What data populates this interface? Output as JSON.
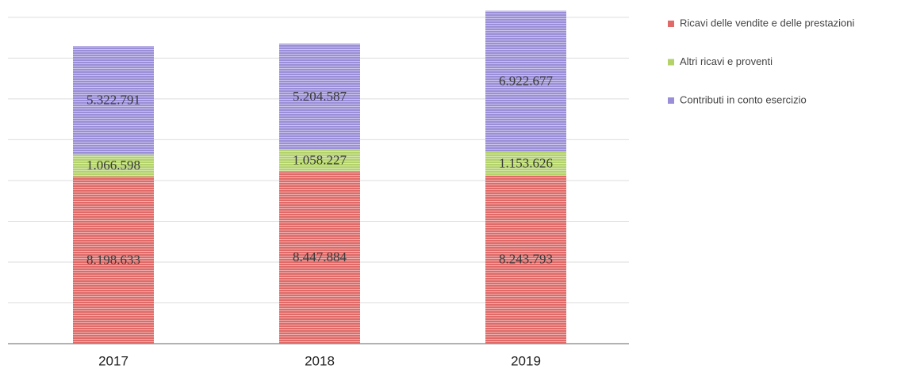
{
  "chart_data": {
    "type": "stacked_bar",
    "categories": [
      "2017",
      "2018",
      "2019"
    ],
    "series": [
      {
        "name": "Ricavi delle vendite e delle prestazioni",
        "color": "#e06a67",
        "values": [
          8198633,
          8447884,
          8243793
        ],
        "value_labels": [
          "8.198.633",
          "8.447.884",
          "8.243.793"
        ]
      },
      {
        "name": "Altri ricavi e proventi",
        "color": "#b3d36a",
        "values": [
          1066598,
          1058227,
          1153626
        ],
        "value_labels": [
          "1.066.598",
          "1.058.227",
          "1.153.626"
        ]
      },
      {
        "name": "Contributi in conto esercizio",
        "color": "#9a8ed8",
        "values": [
          5322791,
          5204587,
          6922677
        ],
        "value_labels": [
          "5.322.791",
          "5.204.587",
          "6.922.677"
        ]
      }
    ],
    "ylim": [
      0,
      16500000
    ],
    "yticks": [
      0,
      2000000,
      4000000,
      6000000,
      8000000,
      10000000,
      12000000,
      14000000,
      16000000
    ],
    "grid": true,
    "legend": "right"
  }
}
